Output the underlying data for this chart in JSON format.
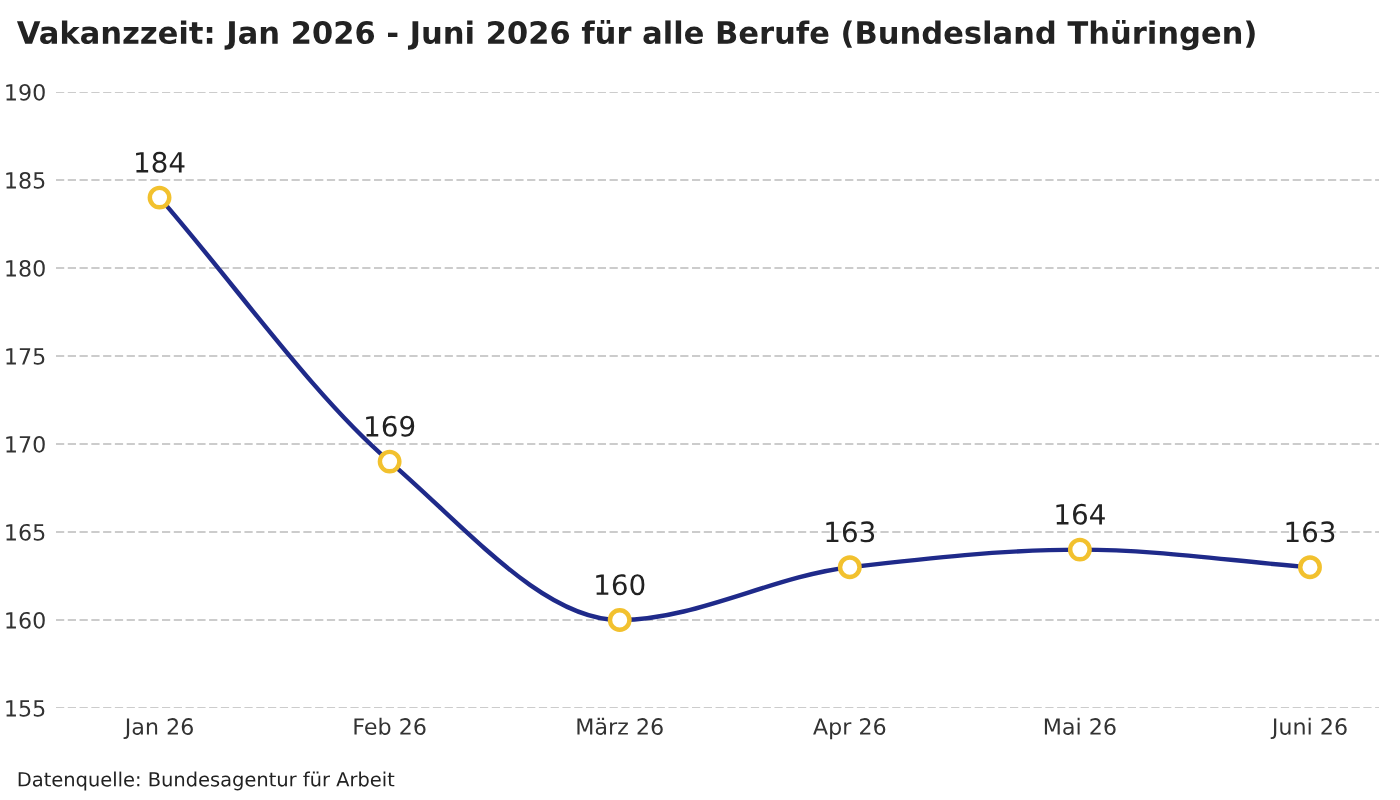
{
  "chart_data": {
    "type": "line",
    "title": "Vakanzzeit: Jan 2026 - Juni 2026 für alle Berufe (Bundesland Thüringen)",
    "categories": [
      "Jan 26",
      "Feb 26",
      "März 26",
      "Apr 26",
      "Mai 26",
      "Juni 26"
    ],
    "series": [
      {
        "color": "#1f2a8a",
        "values": [
          184,
          169,
          160,
          163,
          164,
          163
        ]
      }
    ],
    "marker": "circle",
    "line_style": "solid",
    "ylim": [
      155,
      190
    ],
    "yticks": [
      155,
      160,
      165,
      170,
      175,
      180,
      185,
      190
    ],
    "grid": "y",
    "legend": false,
    "data_labels": true,
    "annotations": [
      "Datenquelle: Bundesagentur für Arbeit"
    ]
  }
}
